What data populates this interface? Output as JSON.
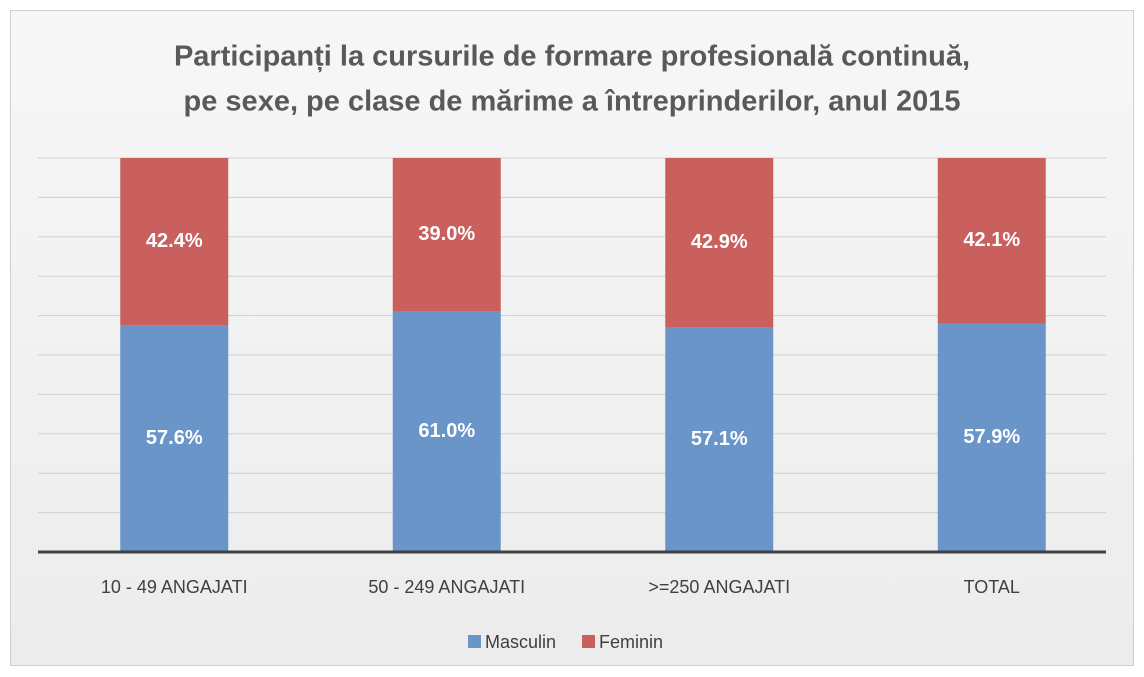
{
  "chart_data": {
    "type": "stacked_bar",
    "title": [
      "Participanți la cursurile de formare profesională continuă,",
      "pe sexe, pe clase de mărime a întreprinderilor, anul 2015"
    ],
    "categories": [
      "10 - 49 ANGAJATI",
      "50 - 249 ANGAJATI",
      ">=250 ANGAJATI",
      "TOTAL"
    ],
    "series": [
      {
        "name": "Masculin",
        "color": "#6995c8",
        "values": [
          57.6,
          61.0,
          57.1,
          57.9
        ],
        "value_labels": [
          "57.6%",
          "61.0%",
          "57.1%",
          "57.9%"
        ]
      },
      {
        "name": "Feminin",
        "color": "#c9605e",
        "values": [
          42.4,
          39.0,
          42.9,
          42.1
        ],
        "value_labels": [
          "42.4%",
          "39.0%",
          "42.9%",
          "42.1%"
        ]
      }
    ],
    "ylim": [
      0,
      100
    ],
    "yticks": [
      0,
      10,
      20,
      30,
      40,
      50,
      60,
      70,
      80,
      90,
      100
    ],
    "grid": true,
    "legend": "bottom"
  }
}
